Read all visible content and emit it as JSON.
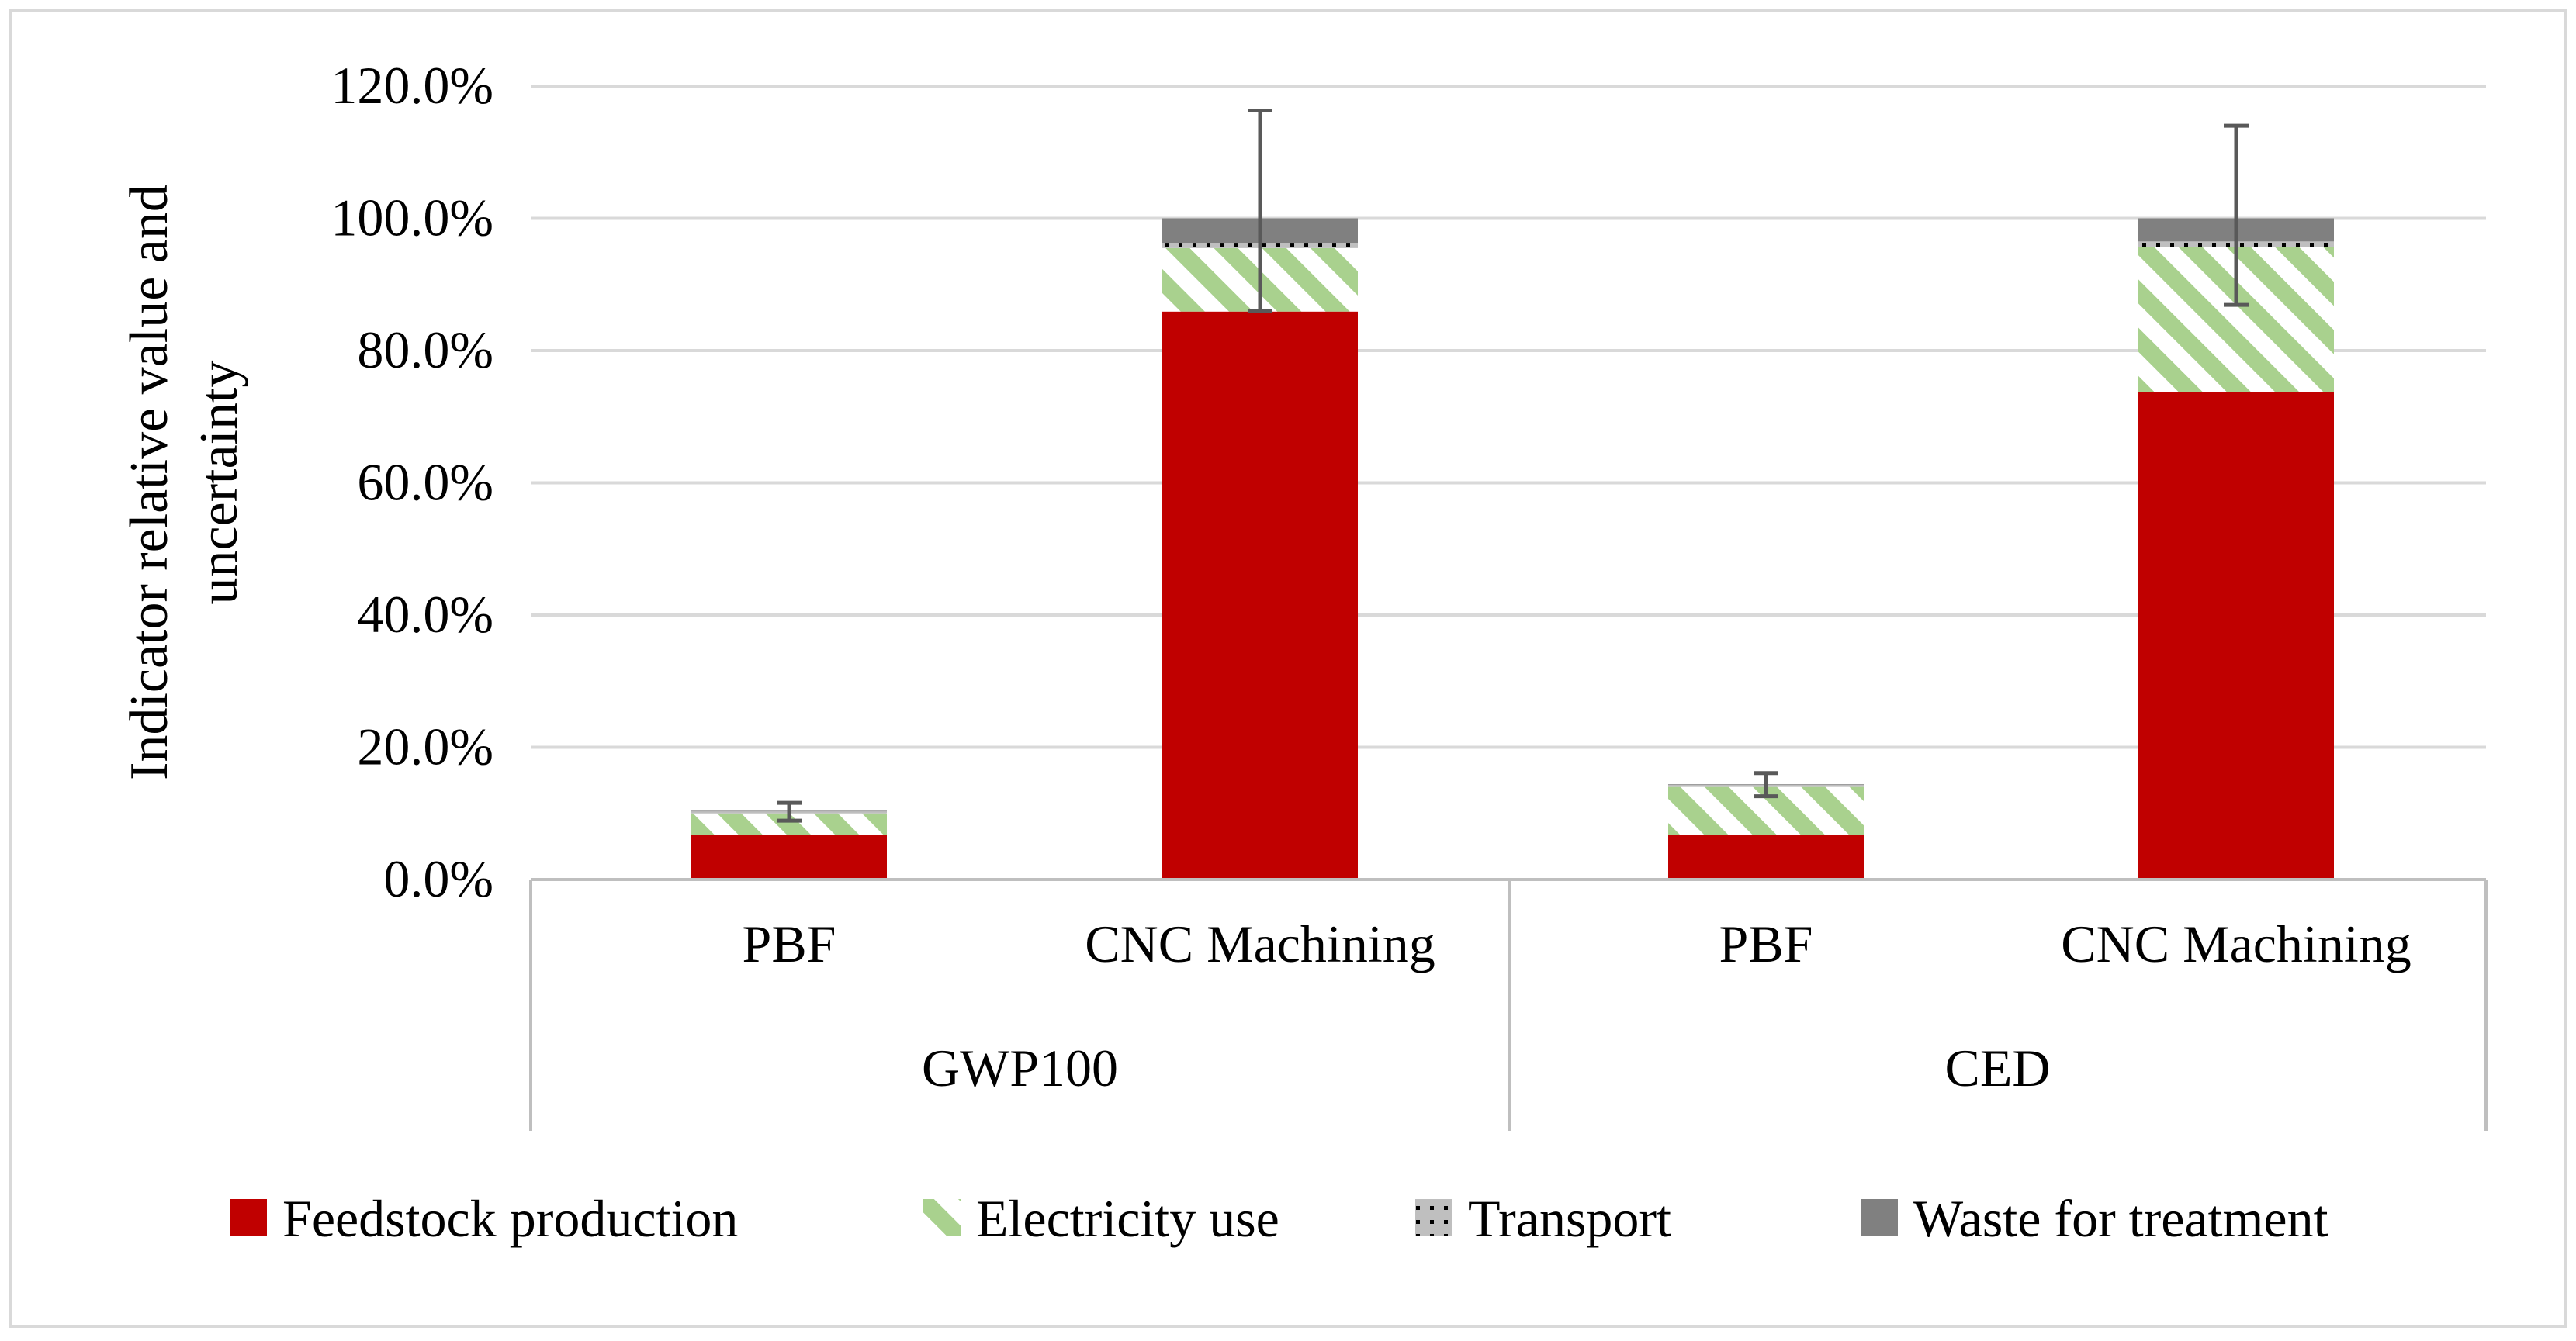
{
  "chart_data": {
    "type": "bar",
    "stacked": true,
    "title": "",
    "ylabel": "Indicator relative value and uncertainty",
    "ylabel_lines": [
      "Indicator relative value and",
      "uncertainty"
    ],
    "xlabel": "",
    "ylim": [
      0,
      120
    ],
    "yticks": [
      0,
      20,
      40,
      60,
      80,
      100,
      120
    ],
    "ytick_labels": [
      "0.0%",
      "20.0%",
      "40.0%",
      "60.0%",
      "80.0%",
      "100.0%",
      "120.0%"
    ],
    "grid": true,
    "groups": [
      {
        "name": "GWP100",
        "categories": [
          "PBF",
          "CNC Machining"
        ]
      },
      {
        "name": "CED",
        "categories": [
          "PBF",
          "CNC Machining"
        ]
      }
    ],
    "categories": [
      "PBF",
      "CNC Machining",
      "PBF",
      "CNC Machining"
    ],
    "series": [
      {
        "name": "Feedstock production",
        "color": "#C00000",
        "pattern": "solid",
        "values": [
          6.8,
          85.9,
          6.8,
          73.7
        ]
      },
      {
        "name": "Electricity use",
        "color": "#A9D18E",
        "pattern": "diagonal-stripe",
        "values": [
          3.2,
          9.6,
          7.2,
          22.0
        ]
      },
      {
        "name": "Transport",
        "color": "#BFBFBF",
        "pattern": "dotted",
        "values": [
          0.3,
          0.8,
          0.3,
          0.8
        ]
      },
      {
        "name": "Waste for treatment",
        "color": "#808080",
        "pattern": "solid",
        "values": [
          0.1,
          3.7,
          0.1,
          3.5
        ]
      }
    ],
    "error_bars": [
      {
        "category": "PBF",
        "group": "GWP100",
        "center": 10.2,
        "low": 8.9,
        "high": 11.6
      },
      {
        "category": "CNC Machining",
        "group": "GWP100",
        "center": 100.0,
        "low": 86.0,
        "high": 116.3
      },
      {
        "category": "PBF",
        "group": "CED",
        "center": 14.2,
        "low": 12.6,
        "high": 16.1
      },
      {
        "category": "CNC Machining",
        "group": "CED",
        "center": 100.0,
        "low": 86.9,
        "high": 114.0
      }
    ],
    "legend_position": "bottom",
    "colors": {
      "axis": "#BFBFBF",
      "gridline": "#D9D9D9",
      "error_bar": "#595959",
      "frame": "#D9D9D9"
    }
  }
}
